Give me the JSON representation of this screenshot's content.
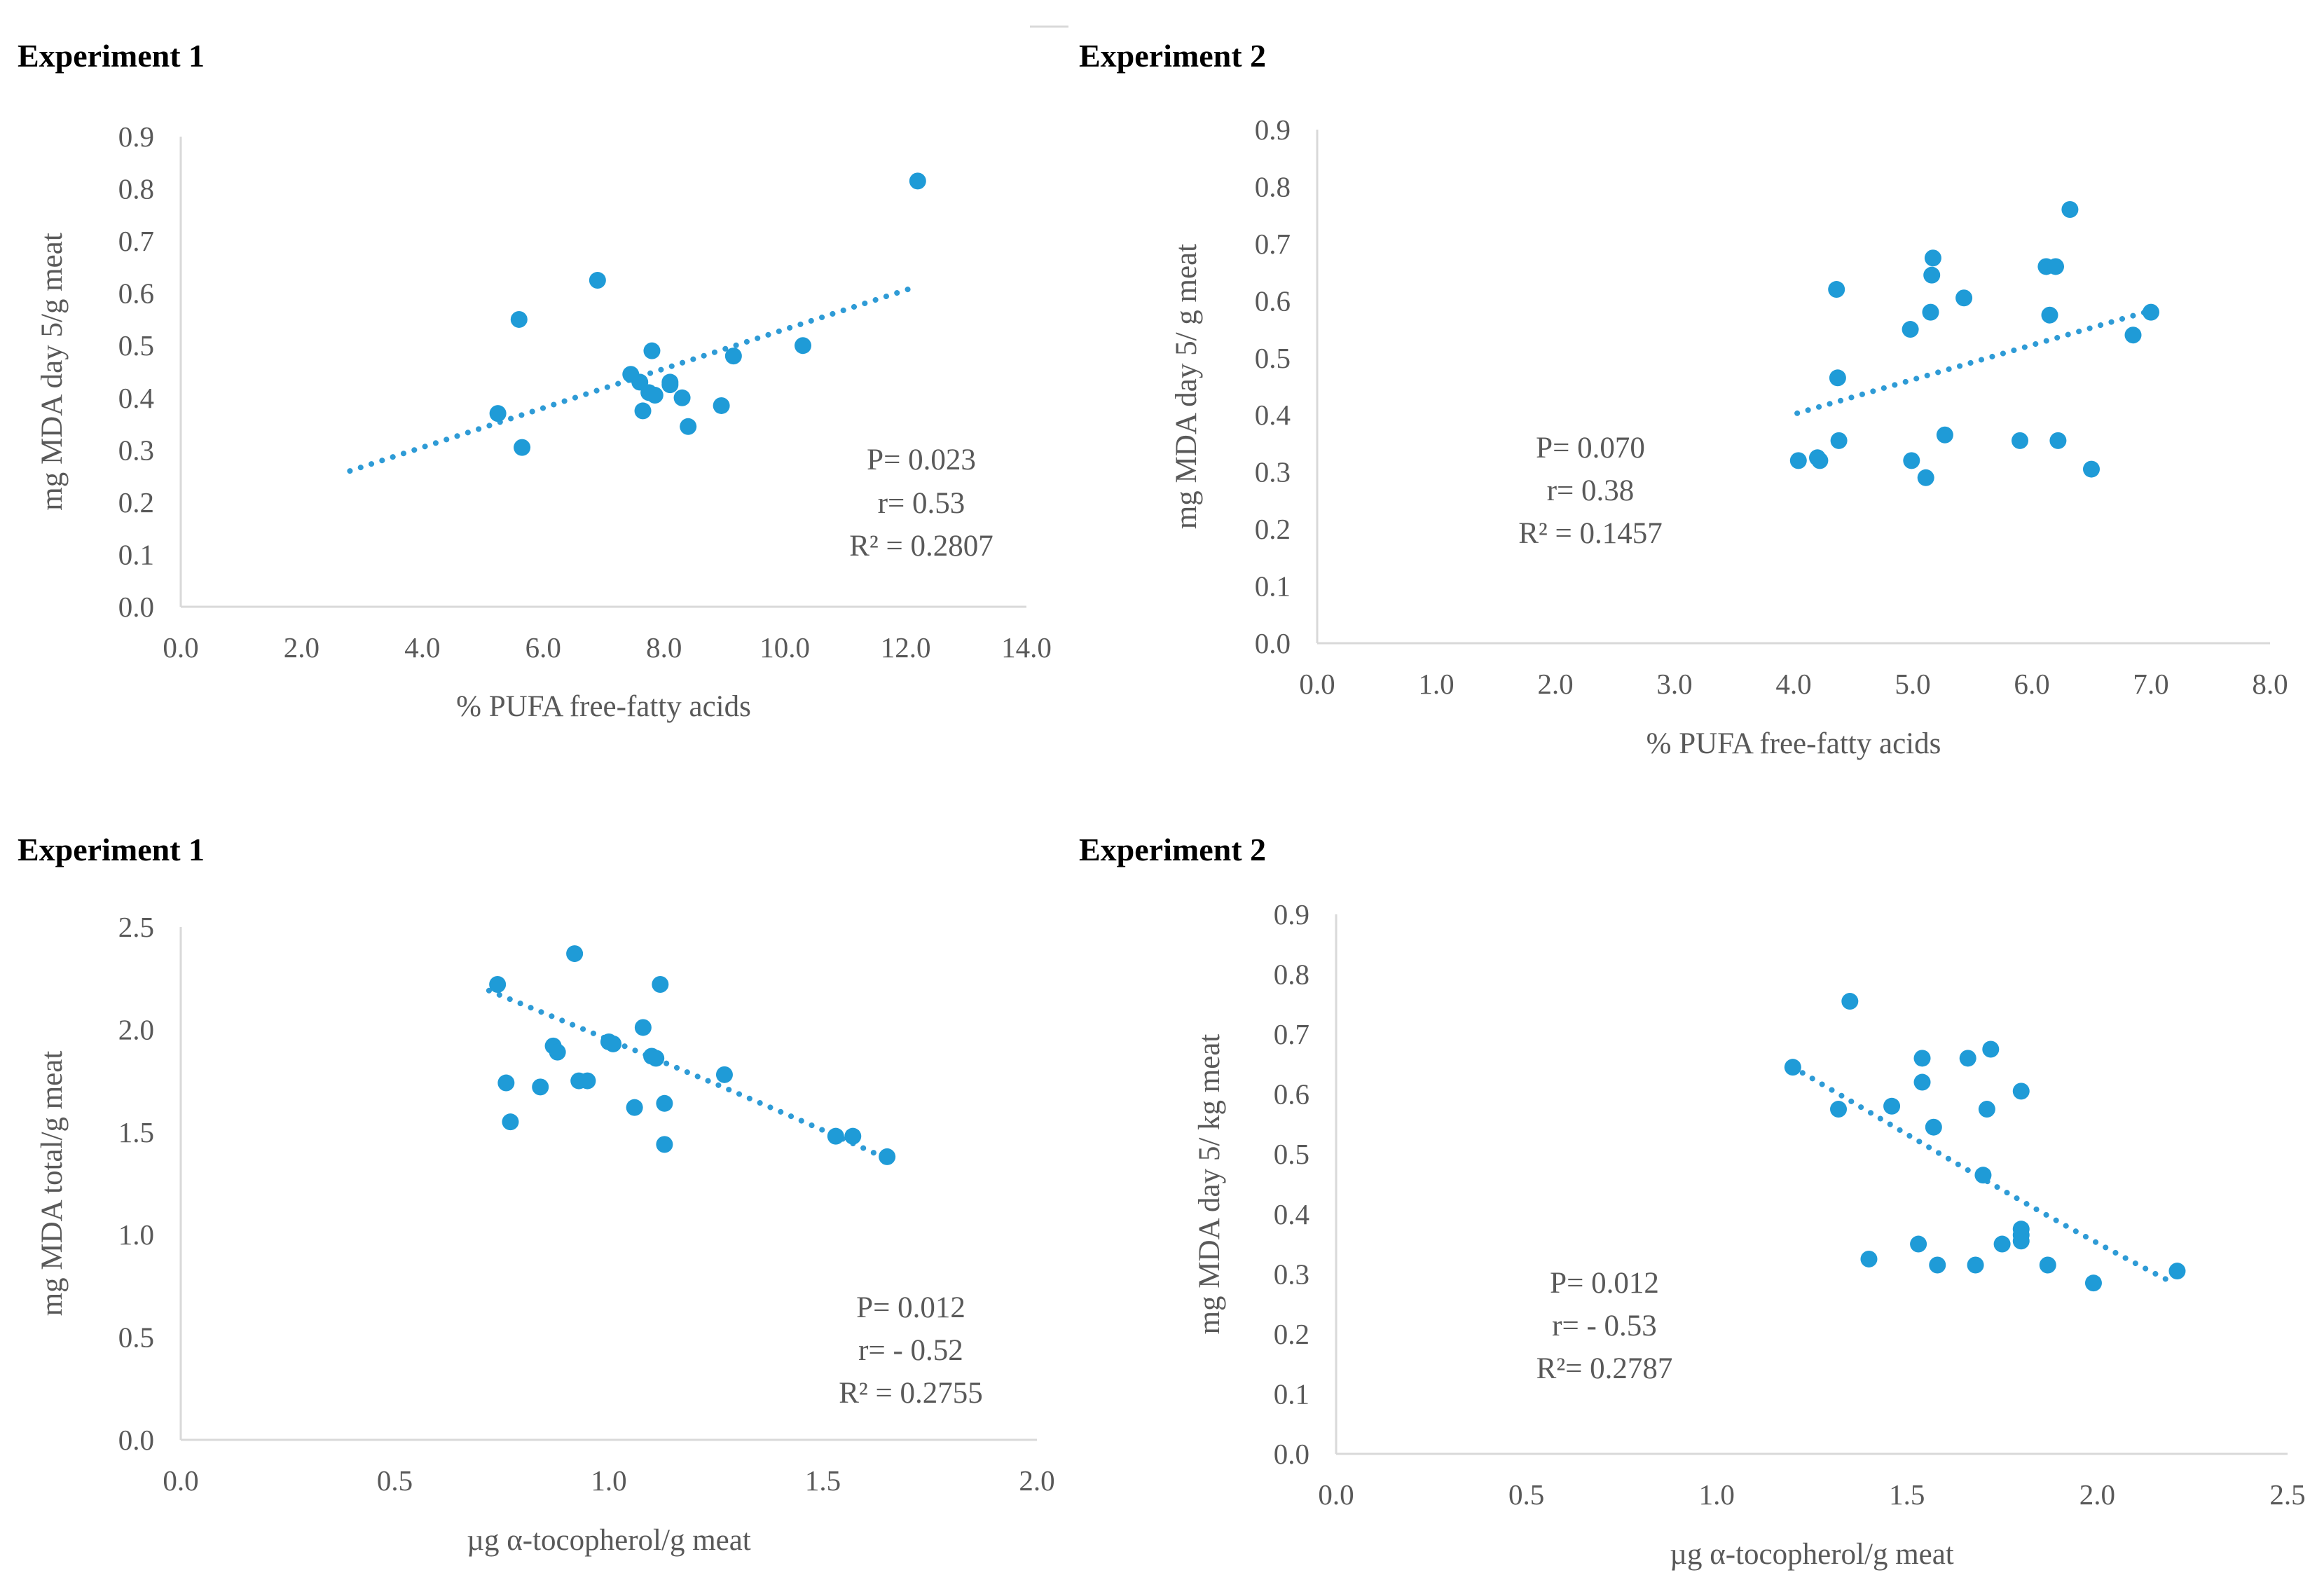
{
  "panels": [
    {
      "title": "Experiment 1",
      "stats": [
        "P= 0.023",
        "r= 0.53",
        "R² = 0.2807"
      ]
    },
    {
      "title": "Experiment 2",
      "stats": [
        "P= 0.070",
        "r= 0.38",
        "R² = 0.1457"
      ]
    },
    {
      "title": "Experiment 1",
      "stats": [
        "P= 0.012",
        "r= - 0.52",
        "R² = 0.2755"
      ]
    },
    {
      "title": "Experiment 2",
      "stats": [
        "P= 0.012",
        "r= - 0.53",
        "R²= 0.2787"
      ]
    }
  ],
  "colors": {
    "points": "#1f9bd7",
    "trend": "#2e9bd6",
    "axis": "#d9d9d9",
    "text": "#595959"
  },
  "chart_data": [
    {
      "type": "scatter",
      "title": "Experiment 1",
      "xlabel": "% PUFA free-fatty acids",
      "ylabel": "mg MDA day 5/g meat",
      "xlim": [
        0,
        14
      ],
      "ylim": [
        0,
        0.9
      ],
      "xticks": [
        "0.0",
        "2.0",
        "4.0",
        "6.0",
        "8.0",
        "10.0",
        "12.0",
        "14.0"
      ],
      "yticks": [
        "0.0",
        "0.1",
        "0.2",
        "0.3",
        "0.4",
        "0.5",
        "0.6",
        "0.7",
        "0.8",
        "0.9"
      ],
      "points": [
        [
          12.2,
          0.815
        ],
        [
          6.9,
          0.625
        ],
        [
          5.6,
          0.55
        ],
        [
          7.8,
          0.49
        ],
        [
          10.3,
          0.5
        ],
        [
          9.15,
          0.48
        ],
        [
          7.45,
          0.445
        ],
        [
          7.6,
          0.43
        ],
        [
          8.1,
          0.43
        ],
        [
          8.1,
          0.425
        ],
        [
          7.75,
          0.41
        ],
        [
          7.85,
          0.405
        ],
        [
          8.3,
          0.4
        ],
        [
          7.65,
          0.375
        ],
        [
          8.95,
          0.385
        ],
        [
          5.25,
          0.37
        ],
        [
          8.4,
          0.345
        ],
        [
          5.65,
          0.305
        ]
      ],
      "trendline": {
        "type": "linear",
        "x": [
          2.8,
          12.1
        ],
        "y": [
          0.26,
          0.61
        ]
      }
    },
    {
      "type": "scatter",
      "title": "Experiment 2",
      "xlabel": "% PUFA free-fatty acids",
      "ylabel": "mg MDA day 5/ g meat",
      "xlim": [
        0,
        8
      ],
      "ylim": [
        0,
        0.9
      ],
      "xticks": [
        "0.0",
        "1.0",
        "2.0",
        "3.0",
        "4.0",
        "5.0",
        "6.0",
        "7.0",
        "8.0"
      ],
      "yticks": [
        "0.0",
        "0.1",
        "0.2",
        "0.3",
        "0.4",
        "0.5",
        "0.6",
        "0.7",
        "0.8",
        "0.9"
      ],
      "points": [
        [
          6.32,
          0.76
        ],
        [
          5.17,
          0.675
        ],
        [
          6.12,
          0.66
        ],
        [
          6.2,
          0.66
        ],
        [
          5.16,
          0.645
        ],
        [
          4.36,
          0.62
        ],
        [
          5.43,
          0.605
        ],
        [
          5.15,
          0.58
        ],
        [
          6.15,
          0.575
        ],
        [
          7.0,
          0.58
        ],
        [
          4.98,
          0.55
        ],
        [
          6.85,
          0.54
        ],
        [
          4.37,
          0.465
        ],
        [
          5.27,
          0.365
        ],
        [
          4.38,
          0.355
        ],
        [
          5.9,
          0.355
        ],
        [
          6.22,
          0.355
        ],
        [
          4.2,
          0.325
        ],
        [
          4.04,
          0.32
        ],
        [
          4.22,
          0.32
        ],
        [
          4.99,
          0.32
        ],
        [
          6.5,
          0.305
        ],
        [
          5.11,
          0.29
        ]
      ],
      "trendline": {
        "type": "linear",
        "x": [
          4.03,
          7.0
        ],
        "y": [
          0.403,
          0.583
        ]
      }
    },
    {
      "type": "scatter",
      "title": "Experiment 1",
      "xlabel": "µg α-tocopherol/g meat",
      "ylabel": "mg MDA total/g meat",
      "xlim": [
        0,
        2
      ],
      "ylim": [
        0,
        2.5
      ],
      "xticks": [
        "0.0",
        "0.5",
        "1.0",
        "1.5",
        "2.0"
      ],
      "yticks": [
        "0.0",
        "0.5",
        "1.0",
        "1.5",
        "2.0",
        "2.5"
      ],
      "points": [
        [
          0.92,
          2.37
        ],
        [
          0.74,
          2.22
        ],
        [
          1.12,
          2.22
        ],
        [
          1.08,
          2.01
        ],
        [
          1.0,
          1.94
        ],
        [
          1.01,
          1.93
        ],
        [
          0.87,
          1.92
        ],
        [
          0.88,
          1.89
        ],
        [
          1.1,
          1.87
        ],
        [
          1.11,
          1.86
        ],
        [
          1.27,
          1.78
        ],
        [
          0.76,
          1.74
        ],
        [
          0.93,
          1.75
        ],
        [
          0.95,
          1.75
        ],
        [
          0.84,
          1.72
        ],
        [
          1.13,
          1.64
        ],
        [
          1.06,
          1.62
        ],
        [
          0.77,
          1.55
        ],
        [
          1.53,
          1.48
        ],
        [
          1.57,
          1.48
        ],
        [
          1.13,
          1.44
        ],
        [
          1.65,
          1.38
        ]
      ],
      "trendline": {
        "type": "polynomial",
        "x": [
          0.72,
          1.0,
          1.3,
          1.65
        ],
        "y": [
          2.19,
          1.95,
          1.7,
          1.37
        ]
      }
    },
    {
      "type": "scatter",
      "title": "Experiment 2",
      "xlabel": "µg α-tocopherol/g meat",
      "ylabel": "mg MDA day 5/ kg meat",
      "xlim": [
        0,
        2.5
      ],
      "ylim": [
        0,
        0.9
      ],
      "xticks": [
        "0.0",
        "0.5",
        "1.0",
        "1.5",
        "2.0",
        "2.5"
      ],
      "yticks": [
        "0.0",
        "0.1",
        "0.2",
        "0.3",
        "0.4",
        "0.5",
        "0.6",
        "0.7",
        "0.8",
        "0.9"
      ],
      "points": [
        [
          1.35,
          0.755
        ],
        [
          1.72,
          0.675
        ],
        [
          1.54,
          0.66
        ],
        [
          1.66,
          0.66
        ],
        [
          1.2,
          0.645
        ],
        [
          1.54,
          0.62
        ],
        [
          1.8,
          0.605
        ],
        [
          1.46,
          0.58
        ],
        [
          1.71,
          0.575
        ],
        [
          1.32,
          0.575
        ],
        [
          1.57,
          0.545
        ],
        [
          1.7,
          0.465
        ],
        [
          1.8,
          0.375
        ],
        [
          1.8,
          0.365
        ],
        [
          1.8,
          0.355
        ],
        [
          1.75,
          0.35
        ],
        [
          1.53,
          0.35
        ],
        [
          1.4,
          0.325
        ],
        [
          1.58,
          0.315
        ],
        [
          1.68,
          0.315
        ],
        [
          1.87,
          0.315
        ],
        [
          2.21,
          0.305
        ],
        [
          1.99,
          0.285
        ]
      ],
      "trendline": {
        "type": "polynomial",
        "x": [
          1.2,
          1.5,
          1.8,
          2.2
        ],
        "y": [
          0.645,
          0.535,
          0.415,
          0.285
        ]
      }
    }
  ]
}
